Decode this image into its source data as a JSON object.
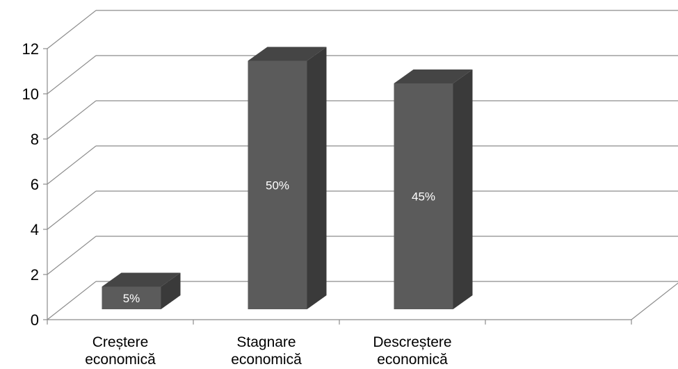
{
  "chart_data": {
    "type": "bar",
    "style": "3d-column",
    "categories": [
      [
        "Creștere",
        "economică"
      ],
      [
        "Stagnare",
        "economică"
      ],
      [
        "Descreștere",
        "economică"
      ]
    ],
    "values": [
      1,
      11,
      10
    ],
    "data_labels": [
      "5%",
      "50%",
      "45%"
    ],
    "y_ticks": [
      "0",
      "2",
      "4",
      "6",
      "8",
      "10",
      "12"
    ],
    "ylim": [
      0,
      12
    ],
    "grid": true,
    "legend": "none",
    "colors": {
      "bar_front": "#5b5b5b",
      "bar_side": "#3a3a3a",
      "bar_top": "#454545",
      "grid": "#8c8c8c",
      "text": "#000000",
      "data_label": "#ffffff"
    }
  }
}
